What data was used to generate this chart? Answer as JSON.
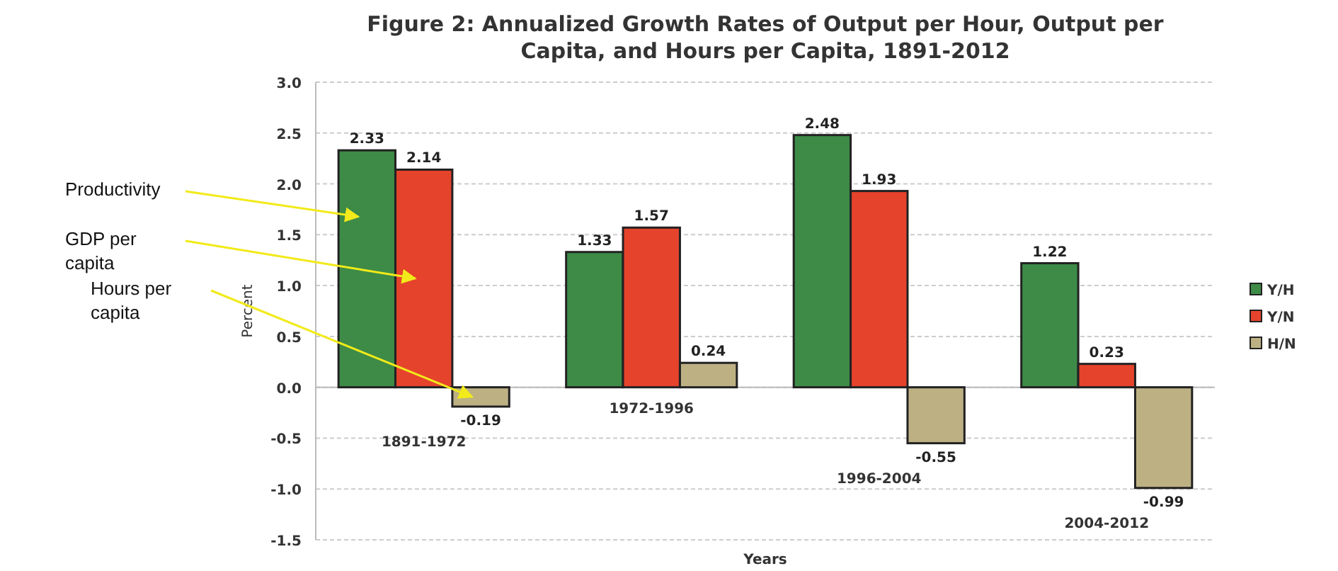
{
  "chart_data": {
    "type": "bar",
    "title": "Figure 2: Annualized Growth Rates of Output per Hour, Output per Capita, and Hours per Capita, 1891-2012",
    "xlabel": "Years",
    "ylabel": "Percent",
    "categories": [
      "1891-1972",
      "1972-1996",
      "1996-2004",
      "2004-2012"
    ],
    "series": [
      {
        "name": "Y/H",
        "color": "#3d8b47",
        "values": [
          2.33,
          1.33,
          2.48,
          1.22
        ]
      },
      {
        "name": "Y/N",
        "color": "#e5432c",
        "values": [
          2.14,
          1.57,
          1.93,
          0.23
        ]
      },
      {
        "name": "H/N",
        "color": "#bdb184",
        "values": [
          -0.19,
          0.24,
          -0.55,
          -0.99
        ]
      }
    ],
    "ylim": [
      -1.5,
      3.0
    ],
    "yticks": [
      {
        "value": -1.5,
        "label": "-1.5"
      },
      {
        "value": -1.0,
        "label": "-1.0"
      },
      {
        "value": -0.5,
        "label": "-0.5"
      },
      {
        "value": 0,
        "label": "0.0"
      },
      {
        "value": 0.5,
        "label": "0.5"
      },
      {
        "value": 1.0,
        "label": "1.0"
      },
      {
        "value": 1.5,
        "label": "1.5"
      },
      {
        "value": 2.0,
        "label": "2.0"
      },
      {
        "value": 2.5,
        "label": "2.5"
      },
      {
        "value": 3.0,
        "label": "3.0"
      }
    ],
    "grid": "y",
    "legend": "right",
    "data_labels": true,
    "annotations": [
      "Productivity",
      "GDP per capita",
      "Hours per capita"
    ]
  }
}
